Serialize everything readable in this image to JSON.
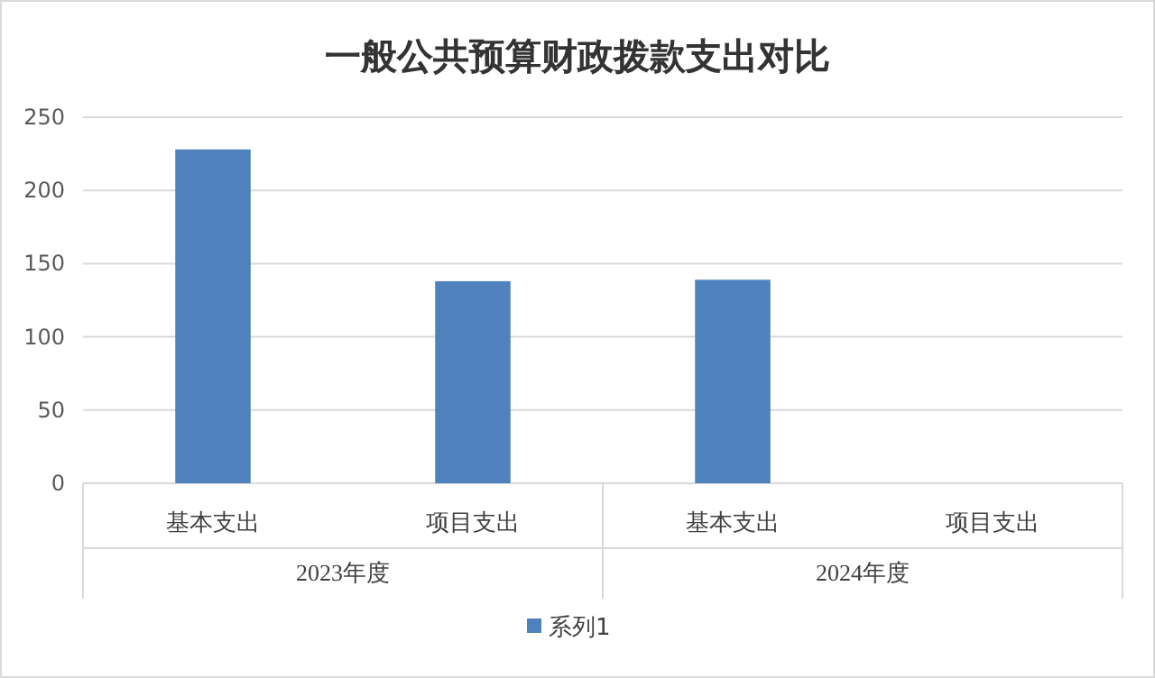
{
  "chart_data": {
    "type": "bar",
    "title": "一般公共预算财政拨款支出对比",
    "categories": [
      "基本支出",
      "项目支出",
      "基本支出",
      "项目支出"
    ],
    "series": [
      {
        "name": "系列1",
        "color": "#4f81bd",
        "values": [
          228,
          138,
          139,
          null
        ]
      }
    ],
    "annotations": [
      "2023年度",
      "2024年度"
    ],
    "ylim": [
      0,
      250
    ],
    "yticks": [
      0,
      50,
      100,
      150,
      200,
      250
    ],
    "grid": "y",
    "legend": "bottom"
  }
}
